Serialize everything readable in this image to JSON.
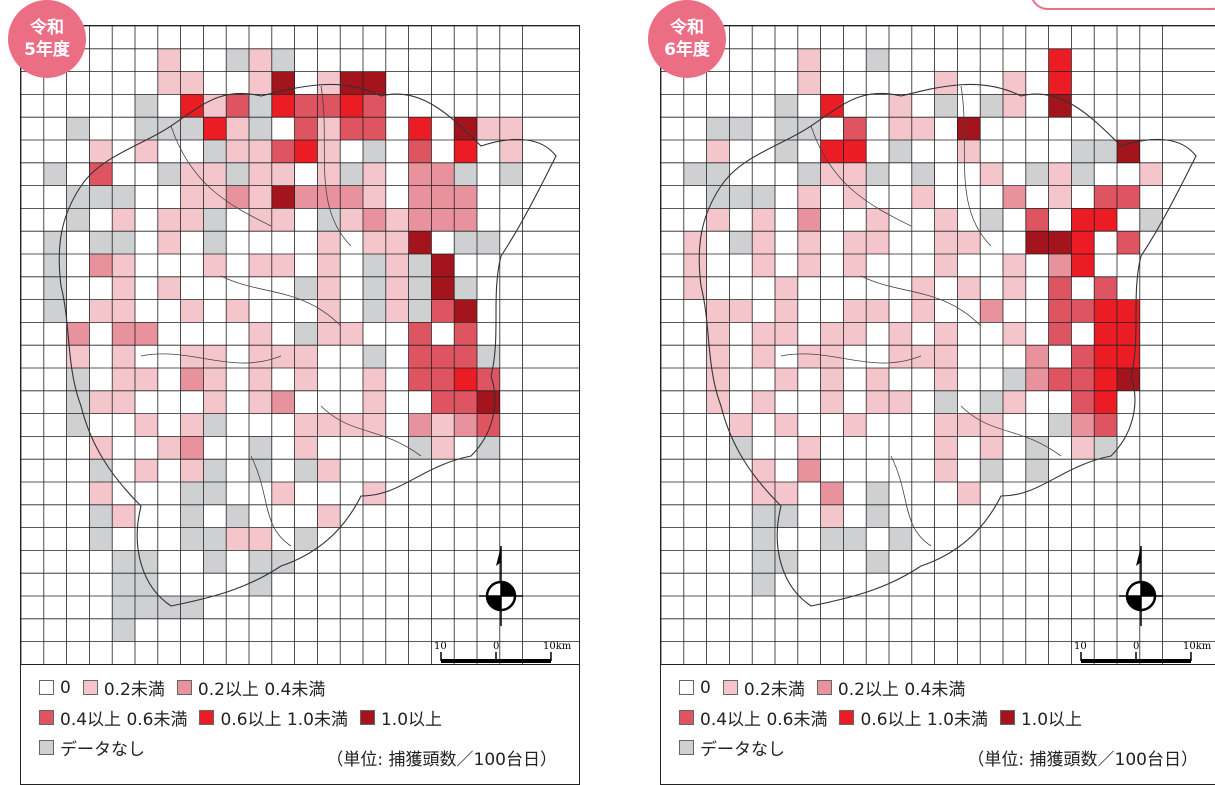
{
  "colors": {
    "c0": "#ffffff",
    "c1": "#f4c6cc",
    "c2": "#e8929d",
    "c3": "#de5460",
    "c4": "#ec1c24",
    "c5": "#a3141c",
    "nd": "#cfd0d2",
    "badge": "#ec6e84"
  },
  "panels": [
    {
      "badge_line1": "令和",
      "badge_line2": "5年度",
      "rows": [
        "......................",
        "......1..N1N..........",
        "......11..15.155......",
        ".....N.413N43343......",
        "..N..NNN41N.3133.4.511",
        "...1.1..N11341.N.3.4.1",
        ".N.3..N11N11.1N1.22N.N",
        "..NNN..112152221.222..",
        "..N.1.11N.11.N121222..",
        ".N.NN.1.N....1.115.NN.",
        ".N.21...1.11.1.N1N5...",
        ".N..1.1.....N1.N1N5N..",
        ".N.11..1.1...1.N1N35..",
        "..2.22....1.N11..3.3..",
        "..1.1..11.111..N.333N.",
        "..N.11.21.1.1..1.3343.",
        "..N11...1.12...1..335.",
        "..N..1.1N...1111.2123.",
        "...1..12..N.1....N1.N.",
        "...N.1.1N.N.N1.......",
        "...1...NN..1...1......",
        "...N1..N.N...1........",
        "...N...NN11.N.........",
        "....NN..N.NN..........",
        "....NN....N...........",
        "....NNNN..............",
        "....N.................",
        "......................"
      ],
      "scale": {
        "left": "10",
        "mid": "0",
        "right": "10km"
      }
    },
    {
      "badge_line1": "令和",
      "badge_line2": "6年度",
      "rows": [
        "......................",
        "......1..N.......4....",
        "......1.....1..1.4....",
        ".....N.4..1.N.N1.5....",
        "..NN.NN.3.11.5.......",
        "..1..N.44.N..1....NN5.",
        ".NN...N11N.N..1.N1N..1",
        "..NNN.1.1..1...2.1.33.",
        "..1.1.2..1..1.N.3.44.N",
        ".1.N1.1.11..11..554.3.",
        ".1..1.1.1...1..1.24..",
        ".1...1.....1.1.1.3.3..",
        "..11.1..11.1..2..3344.",
        "..1.11.11.1.1..1.3.44.",
        "..1.1.11..111...2.344.",
        "..1..1.1.1..1..N23345.",
        "..1.1..1.11.N.N1..34..",
        "...1.1..1...111..N23..",
        "...N..1.....1.1.N.1N..",
        "....1.2.....1.N.N.....",
        "....11.2.N...1........",
        "....NN.1.N............",
        "....N..NN.N...........",
        "....NN...N............",
        "....N.................",
        "......................",
        "......................",
        "......................"
      ],
      "scale": {
        "left": "10",
        "mid": "0",
        "right": "10km"
      }
    }
  ],
  "legend": {
    "items_row1": [
      {
        "label": "0",
        "level": "c0"
      },
      {
        "label": "0.2未満",
        "level": "c1"
      },
      {
        "label": "0.2以上 0.4未満",
        "level": "c2"
      }
    ],
    "items_row2": [
      {
        "label": "0.4以上 0.6未満",
        "level": "c3"
      },
      {
        "label": "0.6以上 1.0未満",
        "level": "c4"
      },
      {
        "label": "1.0以上",
        "level": "c5"
      }
    ],
    "items_row3": [
      {
        "label": "データなし",
        "level": "nd"
      }
    ],
    "unit": "（単位: 捕獲頭数／100台日）"
  }
}
